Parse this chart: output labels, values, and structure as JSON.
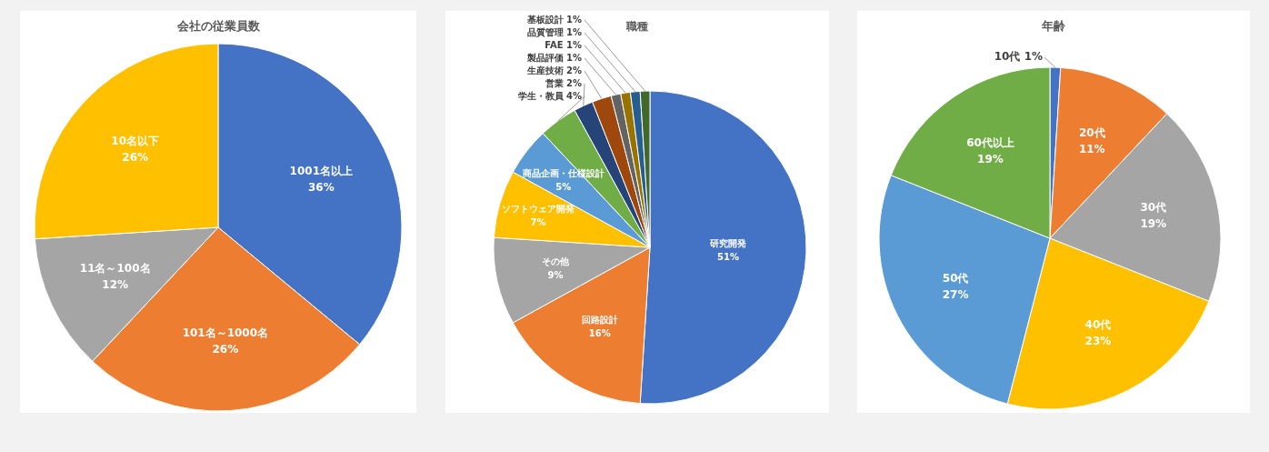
{
  "chart_data": [
    {
      "type": "pie",
      "title": "会社の従業員数",
      "categories": [
        "1001名以上",
        "101名～1000名",
        "11名～100名",
        "10名以下"
      ],
      "values": [
        36,
        26,
        12,
        26
      ],
      "value_labels": [
        "36%",
        "26%",
        "12%",
        "26%"
      ],
      "colors": [
        "#4472c4",
        "#ed7d31",
        "#a5a5a5",
        "#ffc000"
      ]
    },
    {
      "type": "pie",
      "title": "職種",
      "categories": [
        "研究開発",
        "回路設計",
        "その他",
        "ソフトウェア開発",
        "商品企画・仕様設計",
        "学生・教員",
        "営業",
        "生産技術",
        "製品評価",
        "FAE",
        "品質管理",
        "基板設計"
      ],
      "values": [
        51,
        16,
        9,
        7,
        5,
        4,
        2,
        2,
        1,
        1,
        1,
        1
      ],
      "value_labels": [
        "51%",
        "16%",
        "9%",
        "7%",
        "5%",
        "4%",
        "2%",
        "2%",
        "1%",
        "1%",
        "1%",
        "1%"
      ],
      "colors": [
        "#4472c4",
        "#ed7d31",
        "#a5a5a5",
        "#ffc000",
        "#5b9bd5",
        "#70ad47",
        "#264478",
        "#9e480e",
        "#636363",
        "#997300",
        "#255e91",
        "#43682b"
      ]
    },
    {
      "type": "pie",
      "title": "年齢",
      "categories": [
        "10代",
        "20代",
        "30代",
        "40代",
        "50代",
        "60代以上"
      ],
      "values": [
        1,
        11,
        19,
        23,
        27,
        19
      ],
      "value_labels": [
        "1%",
        "11%",
        "19%",
        "23%",
        "27%",
        "19%"
      ],
      "colors": [
        "#4472c4",
        "#ed7d31",
        "#a5a5a5",
        "#ffc000",
        "#5b9bd5",
        "#70ad47"
      ]
    }
  ]
}
